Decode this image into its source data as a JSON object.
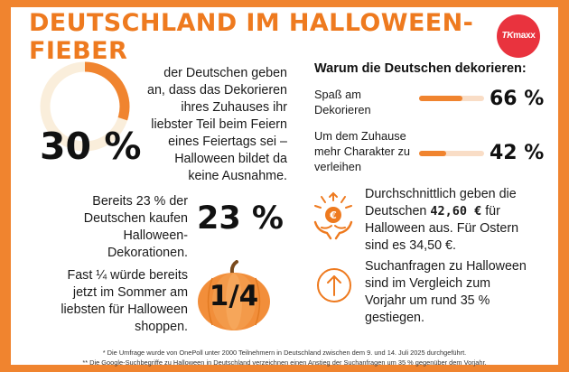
{
  "title": "DEUTSCHLAND IM HALLOWEEN-FIEBER",
  "logo": {
    "text_a": "TK",
    "text_b": "maxx",
    "color": "#e9333e"
  },
  "accent_color": "#f0842f",
  "stat1": {
    "value": "30 %",
    "ring_fraction": 0.3,
    "lines": [
      "der Deutschen geben",
      "an, dass das Dekorieren",
      "ihres Zuhauses ihr",
      "liebster Teil beim Feiern",
      "eines Feiertags sei –",
      "Halloween bildet da",
      "keine Ausnahme."
    ]
  },
  "reasons": {
    "heading": "Warum die Deutschen dekorieren:",
    "items": [
      {
        "label_lines": [
          "Spaß am",
          "Dekorieren"
        ],
        "value": 66,
        "value_text": "66 %"
      },
      {
        "label_lines": [
          "Um dem Zuhause",
          "mehr Charakter zu",
          "verleihen"
        ],
        "value": 42,
        "value_text": "42 %"
      }
    ]
  },
  "stat2": {
    "value": "23 %",
    "lines": [
      "Bereits 23 % der",
      "Deutschen kaufen",
      "Halloween-",
      "Dekorationen."
    ]
  },
  "spend": {
    "icon": "coin-hands-icon",
    "pre": "Durchschnittlich geben die",
    "line2_pre": "Deutschen ",
    "amount": "42,60 €",
    "line2_post": " für",
    "line3": "Halloween aus. Für Ostern",
    "line4": "sind es 34,50 €."
  },
  "stat3": {
    "value": "1/4",
    "icon": "pumpkin-icon",
    "lines": [
      "Fast ¼ würde bereits",
      "jetzt im Sommer am",
      "liebsten für Halloween",
      "shoppen."
    ]
  },
  "search": {
    "icon": "arrow-up-circle-icon",
    "lines": [
      "Suchanfragen zu Halloween",
      "sind im Vergleich zum",
      "Vorjahr um rund 35 %",
      "gestiegen."
    ]
  },
  "footnotes": [
    "* Die Umfrage wurde von OnePoll unter 2000 Teilnehmern in Deutschland zwischen dem 9. und 14. Juli 2025 durchgeführt.",
    "** Die Google-Suchbegriffe zu Halloween in Deutschland verzeichnen einen Anstieg der Suchanfragen um 35 % gegenüber dem Vorjahr."
  ]
}
